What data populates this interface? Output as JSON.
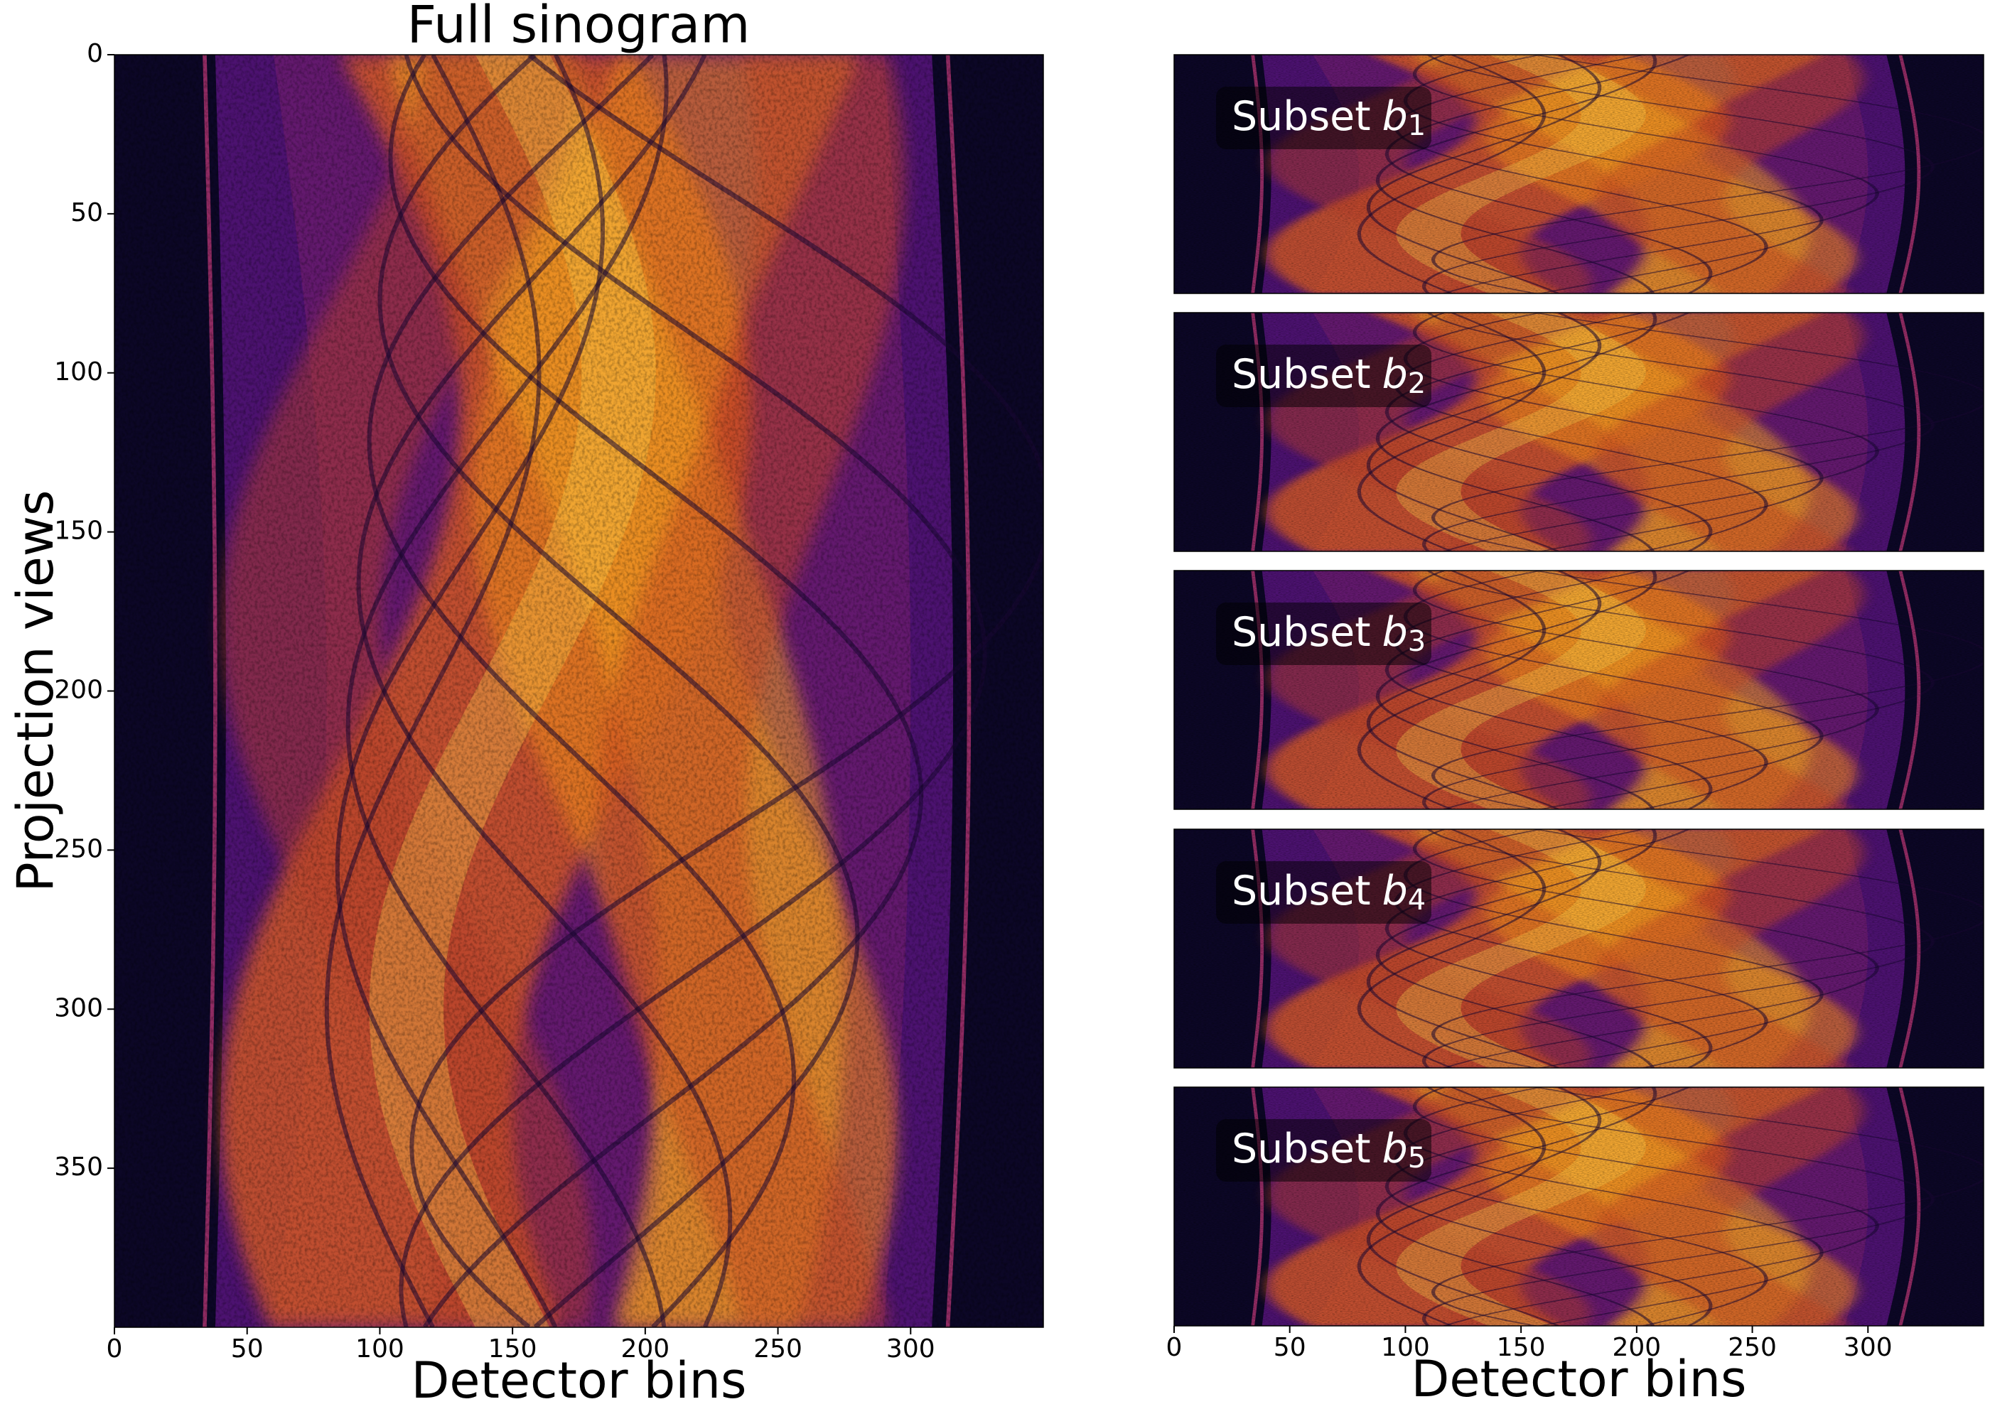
{
  "chart_data": [
    {
      "type": "heatmap",
      "title": "Full sinogram",
      "xlabel": "Detector bins",
      "ylabel": "Projection views",
      "xlim": [
        0,
        350
      ],
      "ylim": [
        400,
        0
      ],
      "xticks": [
        0,
        50,
        100,
        150,
        200,
        250,
        300
      ],
      "yticks": [
        0,
        50,
        100,
        150,
        200,
        250,
        300,
        350
      ],
      "colormap": "inferno"
    },
    {
      "type": "heatmap",
      "xlabel": "Detector bins",
      "xlim": [
        0,
        350
      ],
      "ylim": [
        80,
        0
      ],
      "xticks": [
        0,
        50,
        100,
        150,
        200,
        250,
        300
      ],
      "panels": [
        {
          "label": "Subset",
          "symbol": "b",
          "index": "1"
        },
        {
          "label": "Subset",
          "symbol": "b",
          "index": "2"
        },
        {
          "label": "Subset",
          "symbol": "b",
          "index": "3"
        },
        {
          "label": "Subset",
          "symbol": "b",
          "index": "4"
        },
        {
          "label": "Subset",
          "symbol": "b",
          "index": "5"
        }
      ],
      "colormap": "inferno"
    }
  ]
}
